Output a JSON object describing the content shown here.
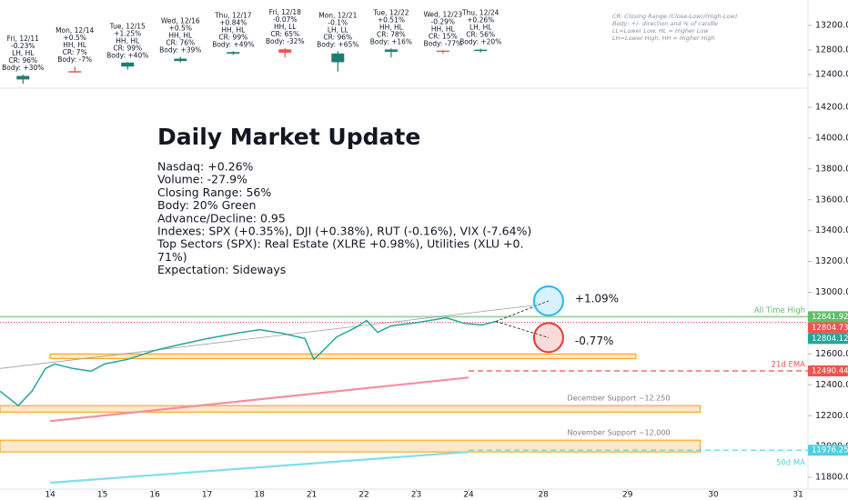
{
  "chart_data": [
    {
      "type": "candlestick",
      "x": [
        -0.52,
        0.47,
        1.48,
        2.49,
        3.5,
        4.49,
        5.5,
        6.52,
        7.51,
        8.23
      ],
      "open": [
        12320,
        12455,
        12530,
        12620,
        12740,
        12810,
        12600,
        12770,
        12790,
        12790
      ],
      "high": [
        12400,
        12530,
        12603,
        12690,
        12780,
        12830,
        12780,
        12825,
        12795,
        12820
      ],
      "low": [
        12250,
        12435,
        12480,
        12600,
        12720,
        12680,
        12450,
        12680,
        12740,
        12760
      ],
      "close": [
        12377,
        12440,
        12595,
        12658,
        12765,
        12756,
        12742,
        12808,
        12771,
        12805
      ],
      "labels": [
        [
          "Fri, 12/11",
          "-0.23%",
          "LH, HL",
          "CR: 96%",
          "Body: +30%"
        ],
        [
          "Mon, 12/14",
          "+0.5%",
          "HH, HL",
          "CR: 7%",
          "Body: -7%"
        ],
        [
          "Tue, 12/15",
          "+1.25%",
          "HH, HL",
          "CR: 99%",
          "Body: +40%"
        ],
        [
          "Wed, 12/16",
          "+0.5%",
          "HH, HL",
          "CR: 76%",
          "Body: +39%"
        ],
        [
          "Thu, 12/17",
          "+0.84%",
          "HH, HL",
          "CR: 99%",
          "Body: +49%"
        ],
        [
          "Fri, 12/18",
          "-0.07%",
          "HH, LL",
          "CR: 65%",
          "Body: -32%"
        ],
        [
          "Mon, 12/21",
          "-0.1%",
          "LH, LL",
          "CR: 96%",
          "Body: +65%"
        ],
        [
          "Tue, 12/22",
          "+0.51%",
          "HH, HL",
          "CR: 78%",
          "Body: +16%"
        ],
        [
          "Wed, 12/23",
          "-0.29%",
          "HH, HL",
          "CR: 15%",
          "Body: -77%"
        ],
        [
          "Thu, 12/24",
          "+0.26%",
          "LH, HL",
          "CR: 56%",
          "Body: +20%"
        ]
      ],
      "up_color": "#1e7d70",
      "down_color": "#f05350",
      "notes": [
        "CR: Closing Range (Close-Low)/(High-Low)",
        "Body: +/- direction and % of candle",
        "LL=Lower Low, HL = Higher Low",
        "LH=Lower High, HH = Higher High"
      ],
      "xlim": [
        -0.96,
        14.49
      ],
      "ylim": [
        12207,
        13614
      ],
      "yticks": [
        {
          "value": 12400,
          "label": "12400.00"
        },
        {
          "value": 12800,
          "label": "12800.00"
        },
        {
          "value": 13200,
          "label": "13200.00"
        }
      ]
    },
    {
      "type": "line",
      "title": "Daily Market Update",
      "annotation": [
        "Nasdaq: +0.26%",
        "Volume: -27.9%",
        "Closing Range: 56%",
        "Body: 20% Green",
        "Advance/Decline: 0.95",
        "Indexes: SPX (+0.35%), DJI (+0.38%), RUT (-0.16%), VIX (-7.64%)",
        "Top Sectors (SPX): Real Estate (XLRE +0.98%), Utilities (XLU +0.",
        "71%)",
        "Expectation: Sideways"
      ],
      "x": [
        -0.96,
        -0.78,
        -0.61,
        -0.35,
        -0.09,
        0.09,
        0.43,
        0.78,
        1.04,
        1.48,
        2.0,
        2.52,
        3.01,
        3.57,
        4.0,
        4.43,
        4.87,
        5.04,
        5.17,
        5.48,
        5.83,
        6.05,
        6.26,
        6.52,
        7.04,
        7.57,
        7.91,
        8.26,
        8.52
      ],
      "values": [
        12359,
        12312,
        12265,
        12359,
        12506,
        12535,
        12506,
        12488,
        12535,
        12565,
        12623,
        12664,
        12700,
        12735,
        12758,
        12735,
        12700,
        12565,
        12606,
        12711,
        12770,
        12817,
        12741,
        12782,
        12805,
        12835,
        12800,
        12788,
        12811
      ],
      "color": "#26a69a",
      "trendline": {
        "x": [
          -0.96,
          9.3
        ],
        "values": [
          12506,
          12917
        ],
        "color": "#9e9e9e"
      },
      "curves": [
        {
          "x": [
            0,
            8
          ],
          "values": [
            12165,
            12447
          ],
          "color": "#f48fa0"
        },
        {
          "x": [
            0,
            8
          ],
          "values": [
            11765,
            11965
          ],
          "color": "#80deea"
        }
      ],
      "zones": [
        {
          "x": [
            0,
            11.2
          ],
          "y": [
            12570,
            12600
          ],
          "color": "#f9a825"
        },
        {
          "label": "December Support ~12.250",
          "x": [
            -0.96,
            12.43
          ],
          "y": [
            12223,
            12265
          ],
          "color": "#f9a825"
        },
        {
          "label": "November Support ~12,000",
          "x": [
            -0.96,
            12.43
          ],
          "y": [
            11965,
            12041
          ],
          "color": "#f9a825"
        }
      ],
      "levels": [
        {
          "name": "All Time High",
          "value": 12841.92,
          "color": "#66bb6a",
          "style": "solid"
        },
        {
          "value": 12804.73,
          "color": "#ef5350",
          "style": "dotted"
        },
        {
          "value": 12804.12,
          "color": "#26a69a",
          "style": "none"
        },
        {
          "name": "21d EMA",
          "value": 12490.44,
          "color": "#ef5350",
          "style": "dashed",
          "x_start": 8
        },
        {
          "name": "50d MA",
          "value": 11976.25,
          "color": "#4dd0e1",
          "style": "dashed",
          "x_start": 8
        }
      ],
      "projections": [
        {
          "x": 9.53,
          "value": 1.09,
          "label": "+1.09%",
          "color": "#29b6f6"
        },
        {
          "x": 9.53,
          "value": -0.77,
          "label": "-0.77%",
          "color": "#e53935"
        }
      ],
      "xlim": [
        -0.96,
        14.49
      ],
      "xticks": [
        {
          "value": 0,
          "label": "14"
        },
        {
          "value": 1,
          "label": "15"
        },
        {
          "value": 2,
          "label": "16"
        },
        {
          "value": 3,
          "label": "17"
        },
        {
          "value": 4,
          "label": "18"
        },
        {
          "value": 5,
          "label": "21"
        },
        {
          "value": 6,
          "label": "22"
        },
        {
          "value": 7,
          "label": "23"
        },
        {
          "value": 8,
          "label": "24"
        },
        {
          "value": 9.43,
          "label": "28"
        },
        {
          "value": 11.04,
          "label": "29"
        },
        {
          "value": 12.68,
          "label": "30"
        },
        {
          "value": 14.3,
          "label": "31"
        }
      ],
      "ylim": [
        11724,
        14300
      ],
      "yticks": [
        {
          "value": 11800,
          "label": "11800.00"
        },
        {
          "value": 12000,
          "label": "12000.00"
        },
        {
          "value": 12200,
          "label": "12200.00"
        },
        {
          "value": 12400,
          "label": "12400.00"
        },
        {
          "value": 12600,
          "label": "12600.00"
        },
        {
          "value": 12800,
          "label": "12800.00"
        },
        {
          "value": 13000,
          "label": "13000.00"
        },
        {
          "value": 13200,
          "label": "13200.00"
        },
        {
          "value": 13400,
          "label": "13400.00"
        },
        {
          "value": 13600,
          "label": "13600.00"
        },
        {
          "value": 13800,
          "label": "13800.00"
        },
        {
          "value": 14000,
          "label": "14000.00"
        },
        {
          "value": 14200,
          "label": "14200.00"
        }
      ]
    }
  ]
}
